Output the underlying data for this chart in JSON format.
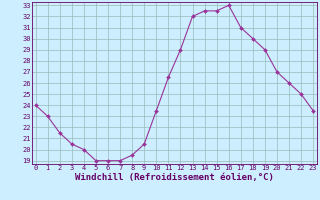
{
  "hours": [
    0,
    1,
    2,
    3,
    4,
    5,
    6,
    7,
    8,
    9,
    10,
    11,
    12,
    13,
    14,
    15,
    16,
    17,
    18,
    19,
    20,
    21,
    22,
    23
  ],
  "values": [
    24.0,
    23.0,
    21.5,
    20.5,
    20.0,
    19.0,
    19.0,
    19.0,
    19.5,
    20.5,
    23.5,
    26.5,
    29.0,
    32.0,
    32.5,
    32.5,
    33.0,
    31.0,
    30.0,
    29.0,
    27.0,
    26.0,
    25.0,
    23.5
  ],
  "line_color": "#993399",
  "marker": "D",
  "marker_size": 2.0,
  "bg_color": "#cceeff",
  "grid_color": "#99bbbb",
  "xlabel": "Windchill (Refroidissement éolien,°C)",
  "ylim_min": 19,
  "ylim_max": 33,
  "xlim_min": 0,
  "xlim_max": 23,
  "yticks": [
    19,
    20,
    21,
    22,
    23,
    24,
    25,
    26,
    27,
    28,
    29,
    30,
    31,
    32,
    33
  ],
  "xticks": [
    0,
    1,
    2,
    3,
    4,
    5,
    6,
    7,
    8,
    9,
    10,
    11,
    12,
    13,
    14,
    15,
    16,
    17,
    18,
    19,
    20,
    21,
    22,
    23
  ],
  "tick_label_fontsize": 5.0,
  "xlabel_fontsize": 6.5,
  "axis_color": "#660066",
  "spine_color": "#660066",
  "linewidth": 0.8,
  "marker_edge_width": 0.3
}
